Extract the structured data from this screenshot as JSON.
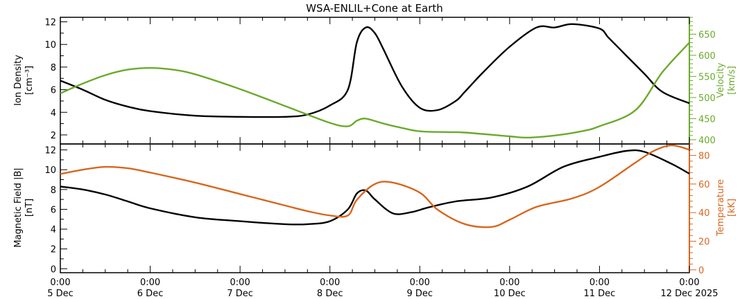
{
  "chart_data": {
    "title": "WSA-ENLIL+Cone at Earth",
    "x_ticks": [
      {
        "time": "0:00",
        "date": "5 Dec"
      },
      {
        "time": "0:00",
        "date": "6 Dec"
      },
      {
        "time": "0:00",
        "date": "7 Dec"
      },
      {
        "time": "0:00",
        "date": "8 Dec"
      },
      {
        "time": "0:00",
        "date": "9 Dec"
      },
      {
        "time": "0:00",
        "date": "10 Dec"
      },
      {
        "time": "0:00",
        "date": "11 Dec"
      },
      {
        "time": "0:00",
        "date": "12 Dec 2025"
      }
    ],
    "panels": [
      {
        "type": "line",
        "left_axis": {
          "label": "Ion Density",
          "unit": "[cm⁻³]",
          "ylim": [
            1.2,
            12.4
          ],
          "ticks": [
            "2",
            "4",
            "6",
            "8",
            "10",
            "12"
          ],
          "color": "#000000"
        },
        "right_axis": {
          "label": "Velocity",
          "unit": "[km/s]",
          "ylim": [
            390,
            690
          ],
          "ticks": [
            "400",
            "450",
            "500",
            "550",
            "600",
            "650"
          ],
          "color": "#6aaa2a"
        },
        "series": [
          {
            "axis": "left",
            "color": "#000000",
            "x": [
              "2025-12-05 00:00",
              "2025-12-05 06:00",
              "2025-12-05 12:00",
              "2025-12-05 18:00",
              "2025-12-06 00:00",
              "2025-12-06 12:00",
              "2025-12-07 00:00",
              "2025-12-07 12:00",
              "2025-12-07 18:00",
              "2025-12-08 00:00",
              "2025-12-08 04:48",
              "2025-12-08 07:12",
              "2025-12-08 09:36",
              "2025-12-08 12:00",
              "2025-12-08 14:24",
              "2025-12-08 19:12",
              "2025-12-09 00:00",
              "2025-12-09 04:48",
              "2025-12-09 09:36",
              "2025-12-09 12:00",
              "2025-12-09 16:48",
              "2025-12-10 00:00",
              "2025-12-10 07:12",
              "2025-12-10 12:00",
              "2025-12-10 16:48",
              "2025-12-11 00:00",
              "2025-12-11 02:24",
              "2025-12-11 07:12",
              "2025-12-11 12:00",
              "2025-12-11 16:48",
              "2025-12-12 00:00"
            ],
            "values": [
              6.8,
              6.0,
              5.1,
              4.5,
              4.1,
              3.7,
              3.6,
              3.6,
              3.8,
              4.6,
              6.0,
              10.2,
              11.5,
              11.0,
              9.5,
              6.3,
              4.4,
              4.2,
              5.0,
              5.8,
              7.5,
              9.8,
              11.5,
              11.5,
              11.8,
              11.4,
              10.6,
              9.0,
              7.4,
              5.8,
              4.8
            ]
          },
          {
            "axis": "right",
            "color": "#6aaa2a",
            "x": [
              "2025-12-05 00:00",
              "2025-12-05 06:00",
              "2025-12-05 12:00",
              "2025-12-05 18:00",
              "2025-12-06 00:00",
              "2025-12-06 06:00",
              "2025-12-06 12:00",
              "2025-12-07 00:00",
              "2025-12-07 12:00",
              "2025-12-08 00:00",
              "2025-12-08 04:48",
              "2025-12-08 07:12",
              "2025-12-08 09:36",
              "2025-12-08 14:24",
              "2025-12-08 19:12",
              "2025-12-09 00:00",
              "2025-12-09 07:12",
              "2025-12-09 12:00",
              "2025-12-10 00:00",
              "2025-12-10 04:48",
              "2025-12-10 12:00",
              "2025-12-10 19:12",
              "2025-12-11 00:00",
              "2025-12-11 09:36",
              "2025-12-11 16:48",
              "2025-12-12 00:00"
            ],
            "values": [
              510,
              533,
              553,
              566,
              570,
              566,
              555,
              520,
              480,
              440,
              432,
              445,
              450,
              438,
              428,
              420,
              418,
              417,
              408,
              405,
              410,
              420,
              432,
              470,
              560,
              630
            ]
          }
        ]
      },
      {
        "type": "line",
        "left_axis": {
          "label": "Magnetic Field |B|",
          "unit": "[nT]",
          "ylim": [
            -0.4,
            12.6
          ],
          "ticks": [
            "0",
            "2",
            "4",
            "6",
            "8",
            "10",
            "12"
          ],
          "color": "#000000"
        },
        "right_axis": {
          "label": "Temperature",
          "unit": "[kK]",
          "ylim": [
            -2,
            88
          ],
          "ticks": [
            "0",
            "20",
            "40",
            "60",
            "80"
          ],
          "color": "#d8661c"
        },
        "series": [
          {
            "axis": "left",
            "color": "#000000",
            "x": [
              "2025-12-05 00:00",
              "2025-12-05 06:00",
              "2025-12-05 12:00",
              "2025-12-05 18:00",
              "2025-12-06 00:00",
              "2025-12-06 12:00",
              "2025-12-07 00:00",
              "2025-12-07 12:00",
              "2025-12-07 18:00",
              "2025-12-08 00:00",
              "2025-12-08 04:48",
              "2025-12-08 07:12",
              "2025-12-08 09:36",
              "2025-12-08 12:00",
              "2025-12-08 16:48",
              "2025-12-08 21:36",
              "2025-12-09 02:24",
              "2025-12-09 09:36",
              "2025-12-09 19:12",
              "2025-12-10 04:48",
              "2025-12-10 14:24",
              "2025-12-11 00:00",
              "2025-12-11 07:12",
              "2025-12-11 12:00",
              "2025-12-11 19:12",
              "2025-12-12 00:00"
            ],
            "values": [
              8.3,
              8.0,
              7.5,
              6.8,
              6.1,
              5.2,
              4.8,
              4.5,
              4.5,
              4.8,
              6.0,
              7.6,
              7.9,
              7.0,
              5.6,
              5.7,
              6.2,
              6.8,
              7.2,
              8.3,
              10.3,
              11.3,
              11.9,
              11.8,
              10.6,
              9.6
            ]
          },
          {
            "axis": "right",
            "color": "#d8661c",
            "x": [
              "2025-12-05 00:00",
              "2025-12-05 06:00",
              "2025-12-05 12:00",
              "2025-12-05 18:00",
              "2025-12-06 00:00",
              "2025-12-06 12:00",
              "2025-12-07 00:00",
              "2025-12-07 12:00",
              "2025-12-07 18:00",
              "2025-12-08 00:00",
              "2025-12-08 04:48",
              "2025-12-08 07:12",
              "2025-12-08 12:00",
              "2025-12-08 16:48",
              "2025-12-09 00:00",
              "2025-12-09 04:48",
              "2025-12-09 12:00",
              "2025-12-09 19:12",
              "2025-12-10 00:00",
              "2025-12-10 07:12",
              "2025-12-10 16:48",
              "2025-12-11 00:00",
              "2025-12-11 09:36",
              "2025-12-11 14:24",
              "2025-12-11 19:12",
              "2025-12-12 00:00"
            ],
            "values": [
              67,
              70,
              72,
              71,
              68,
              61,
              53,
              45,
              41,
              38,
              38,
              49,
              60,
              61,
              54,
              42,
              32,
              30,
              35,
              44,
              50,
              58,
              75,
              83,
              87,
              84
            ]
          }
        ]
      }
    ]
  }
}
